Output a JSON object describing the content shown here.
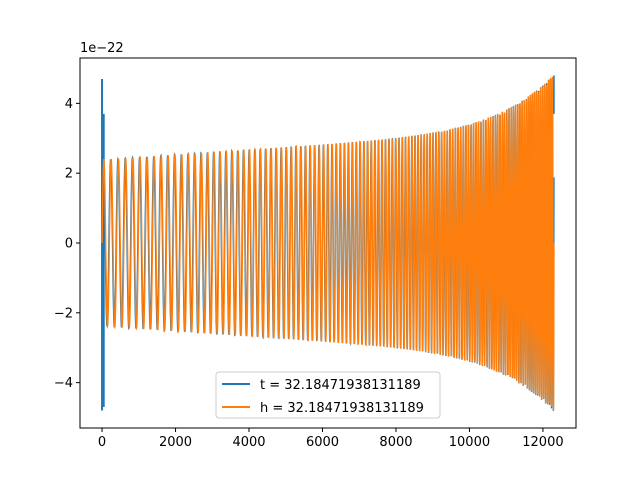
{
  "chart_data": {
    "type": "line",
    "title": "",
    "xlabel": "",
    "ylabel": "",
    "offset_text": "1e−22",
    "xlim": [
      -600,
      12900
    ],
    "ylim": [
      -5.3,
      5.3
    ],
    "y_scale_exponent": -22,
    "xticks": [
      0,
      2000,
      4000,
      6000,
      8000,
      10000,
      12000
    ],
    "xtick_labels": [
      "0",
      "2000",
      "4000",
      "6000",
      "8000",
      "10000",
      "12000"
    ],
    "yticks": [
      -4,
      -2,
      0,
      2,
      4
    ],
    "ytick_labels": [
      "−4",
      "−2",
      "0",
      "2",
      "4"
    ],
    "grid": false,
    "legend_position": "lower center",
    "x_end": 12300,
    "series": [
      {
        "name": "t = 32.18471938131189",
        "color": "#1f77b4",
        "description": "chirp: amplitude ~2.4 rising to ~4.8 at end, with transient spikes (~4.7, ~-4.8) near x=0"
      },
      {
        "name": "h = 32.18471938131189",
        "color": "#ff7f0e",
        "description": "chirp: amplitude ~2.4 rising to ~4.8 at end, frequency increasing with x"
      }
    ]
  }
}
